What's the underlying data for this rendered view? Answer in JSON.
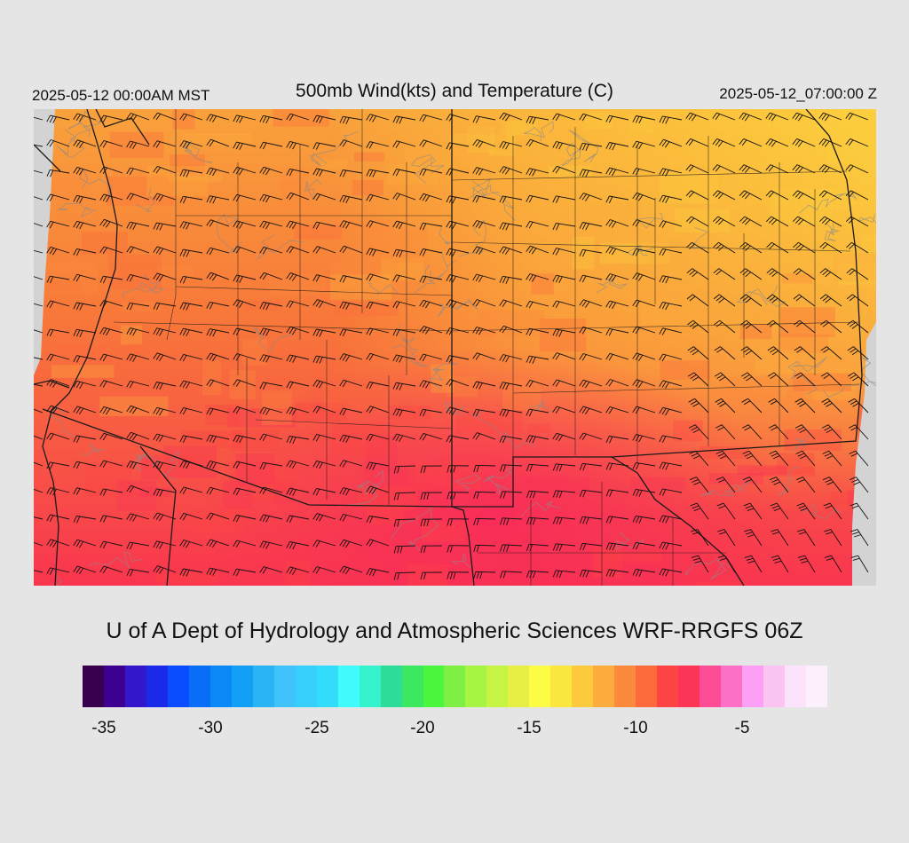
{
  "header": {
    "valid_time_local": "2025-05-12 00:00AM MST",
    "title": "500mb Wind(kts) and Temperature (C)",
    "valid_time_utc": "2025-05-12_07:00:00 Z"
  },
  "credit": "U of A Dept of Hydrology and Atmospheric Sciences WRF-RRGFS 06Z",
  "map": {
    "field": "500mb temperature (C) with wind barbs (kts)",
    "region": "Southwestern United States",
    "temperature_range_c": [
      -13,
      -7
    ],
    "dominant_wind_direction": "west-southwest",
    "colors": {
      "background": "#e5e5e5",
      "no_data": "#d3d3d3",
      "boundaries": "#1a1a1a",
      "contours": "#8a8a8a"
    }
  },
  "colorbar": {
    "colors": [
      "#3a0050",
      "#3d0090",
      "#3418cc",
      "#1a2ae8",
      "#0a4cff",
      "#086ef8",
      "#0a88f6",
      "#12a0f6",
      "#2ab4f6",
      "#40c2fb",
      "#36cefa",
      "#34dcfc",
      "#40fcfc",
      "#34f2cc",
      "#2edc9a",
      "#3ce860",
      "#4cf63e",
      "#7ef044",
      "#a6f444",
      "#c6f444",
      "#e6f044",
      "#fcfc44",
      "#fce640",
      "#fcca3c",
      "#fcac3c",
      "#fc8a3c",
      "#fc6a3c",
      "#fc4444",
      "#fc3456",
      "#fc4c96",
      "#fc70c6",
      "#fca0f6",
      "#fcc4f2",
      "#fce2fa",
      "#fcf0fc"
    ],
    "ticks": [
      "-35",
      "-30",
      "-25",
      "-20",
      "-15",
      "-10",
      "-5"
    ]
  }
}
